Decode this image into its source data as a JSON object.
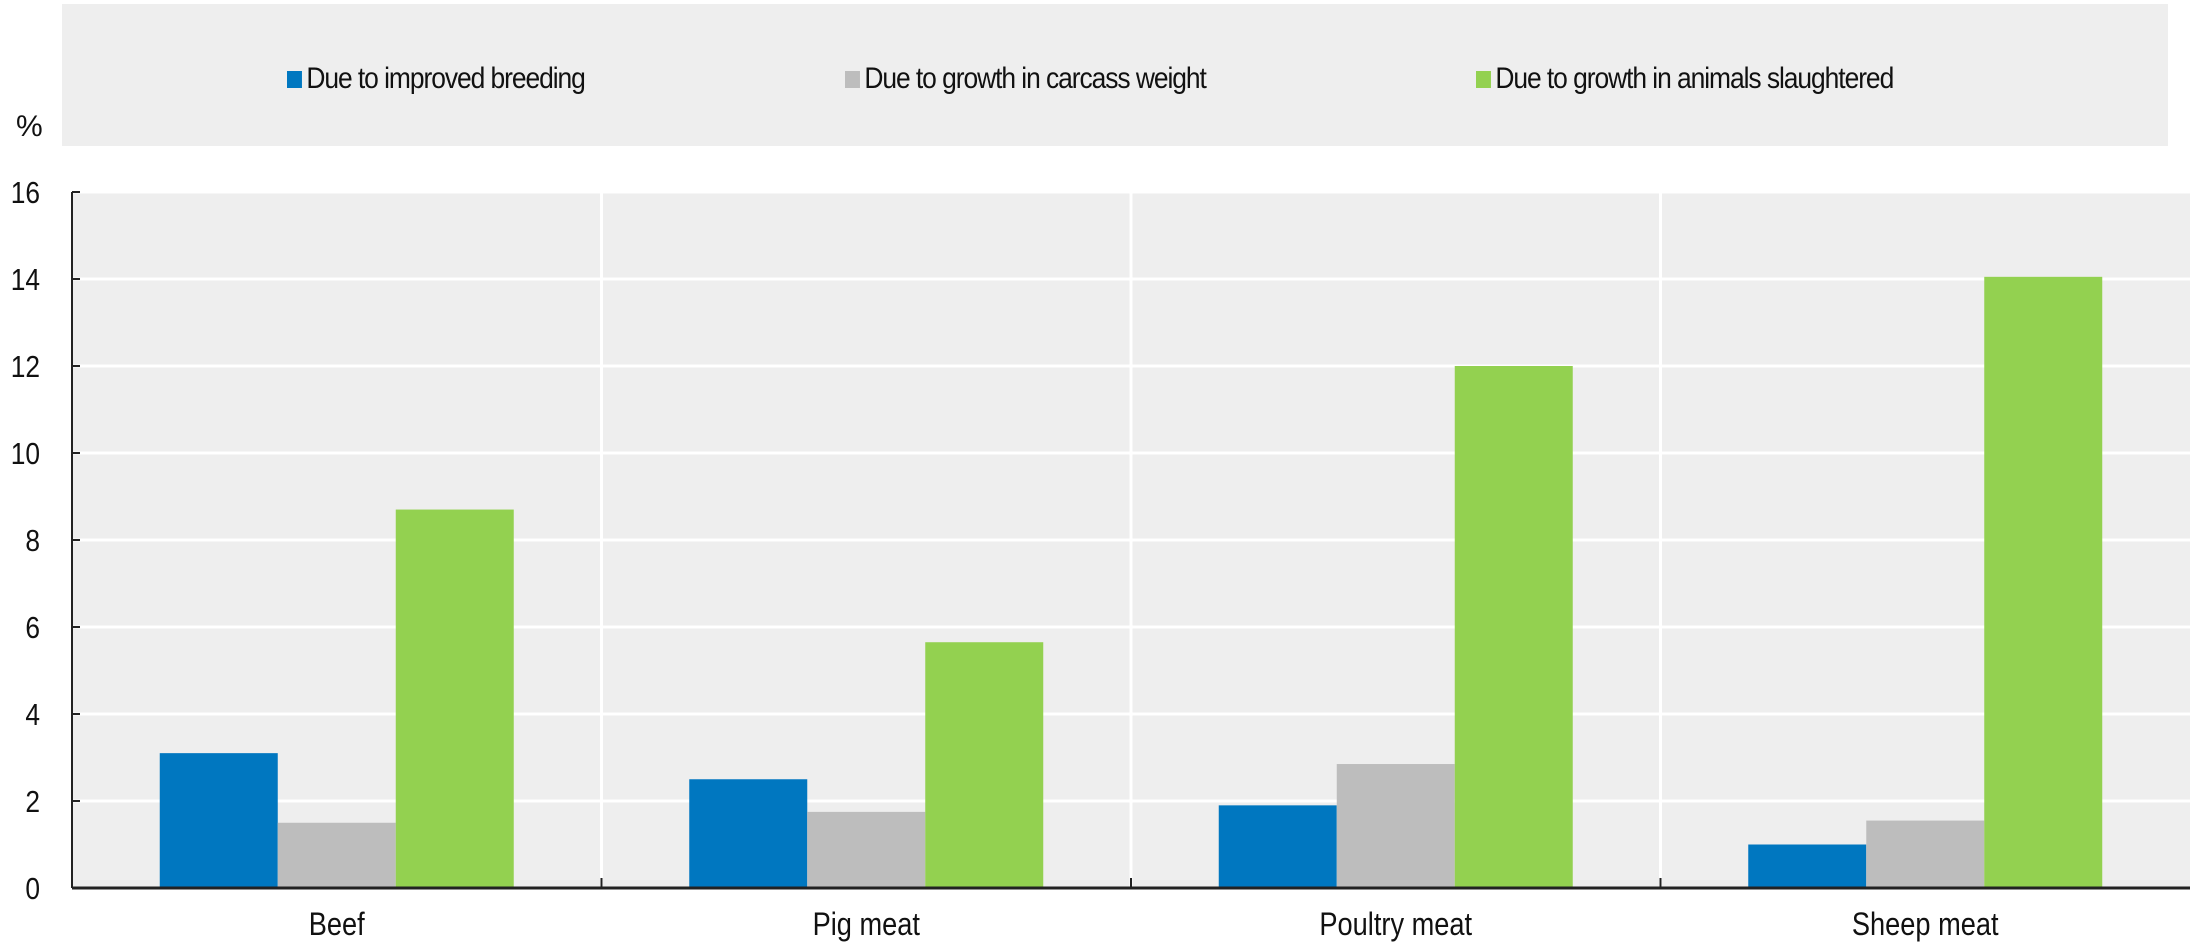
{
  "chart_data": {
    "type": "bar",
    "ylabel": "%",
    "ylim": [
      0,
      16
    ],
    "yticks": [
      0,
      2,
      4,
      6,
      8,
      10,
      12,
      14,
      16
    ],
    "grid": true,
    "legend_position": "top",
    "categories": [
      "Beef",
      "Pig meat",
      "Poultry meat",
      "Sheep meat"
    ],
    "series": [
      {
        "name": "Due to improved breeding",
        "color": "#0077c0",
        "values": [
          3.1,
          2.5,
          1.9,
          1.0
        ]
      },
      {
        "name": "Due to growth in carcass weight",
        "color": "#bdbdbd",
        "values": [
          1.5,
          1.75,
          2.85,
          1.55
        ]
      },
      {
        "name": "Due to growth in animals slaughtered",
        "color": "#93d150",
        "values": [
          8.7,
          5.65,
          12.0,
          14.05
        ]
      }
    ]
  }
}
